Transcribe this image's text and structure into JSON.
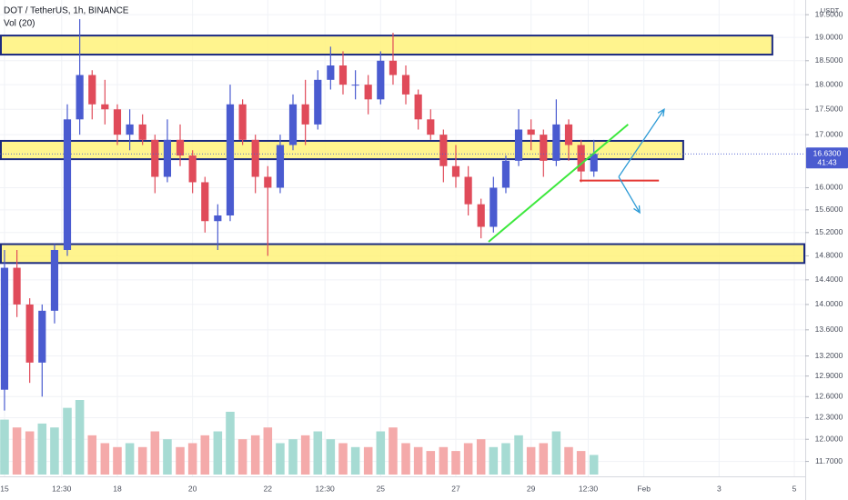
{
  "chart_data": {
    "type": "candlestick",
    "title": "DOT / TetherUS, 1h, BINANCE",
    "volume_label": "Vol (20)",
    "currency": "USDT",
    "log_scale": true,
    "grid": true,
    "up_color": "#4a5bd0",
    "down_color": "#e04b5a",
    "volume_up_color": "#a6dbd3",
    "volume_down_color": "#f4aaaa",
    "x": [
      15,
      15.33,
      15.67,
      16,
      16.33,
      16.67,
      17,
      17.33,
      17.67,
      18,
      18.33,
      18.67,
      19,
      19.33,
      19.67,
      20,
      20.33,
      20.67,
      21,
      21.33,
      21.67,
      22,
      22.33,
      22.67,
      23,
      23.33,
      23.67,
      24,
      24.33,
      24.67,
      25,
      25.33,
      25.67,
      26,
      26.33,
      26.67,
      27,
      27.33,
      27.67,
      28,
      28.33,
      28.67,
      29,
      29.33,
      29.67,
      30,
      30.33,
      30.67
    ],
    "open": [
      12.7,
      14.6,
      14.0,
      13.1,
      13.9,
      14.9,
      17.3,
      18.2,
      17.6,
      17.5,
      17.0,
      17.2,
      16.9,
      16.2,
      16.9,
      16.6,
      16.1,
      15.4,
      15.5,
      17.6,
      16.9,
      16.2,
      16.0,
      16.8,
      17.6,
      17.2,
      18.1,
      18.4,
      18.0,
      18.0,
      17.7,
      18.5,
      18.2,
      17.8,
      17.3,
      17.0,
      16.4,
      16.2,
      15.7,
      15.3,
      16.0,
      16.5,
      17.1,
      17.0,
      16.5,
      17.2,
      16.8,
      16.3
    ],
    "high": [
      14.9,
      14.9,
      14.1,
      14.0,
      15.0,
      17.6,
      19.4,
      18.3,
      18.1,
      17.6,
      17.5,
      17.4,
      17.0,
      17.3,
      17.2,
      16.7,
      16.2,
      15.7,
      18.0,
      17.7,
      17.0,
      16.4,
      17.0,
      17.8,
      18.1,
      18.3,
      18.8,
      18.7,
      18.3,
      18.2,
      18.7,
      19.1,
      18.4,
      17.9,
      17.5,
      17.1,
      16.8,
      16.4,
      15.8,
      16.2,
      16.6,
      17.5,
      17.3,
      17.1,
      17.7,
      17.3,
      16.9,
      16.9
    ],
    "low": [
      12.4,
      13.8,
      12.8,
      12.6,
      13.7,
      14.8,
      17.0,
      17.3,
      17.2,
      16.8,
      16.7,
      16.8,
      15.9,
      16.1,
      16.4,
      15.9,
      15.2,
      14.9,
      15.4,
      16.8,
      15.9,
      14.8,
      15.9,
      16.7,
      16.8,
      17.1,
      17.9,
      17.8,
      17.7,
      17.4,
      17.6,
      18.0,
      17.6,
      17.1,
      16.9,
      16.1,
      16.0,
      15.5,
      15.1,
      15.2,
      15.9,
      16.4,
      16.7,
      16.2,
      16.4,
      16.5,
      16.1,
      16.2
    ],
    "close": [
      14.6,
      14.0,
      13.1,
      13.9,
      14.9,
      17.3,
      18.2,
      17.6,
      17.5,
      17.0,
      17.2,
      16.9,
      16.2,
      16.9,
      16.6,
      16.1,
      15.4,
      15.5,
      17.6,
      16.9,
      16.2,
      16.0,
      16.8,
      17.6,
      17.2,
      18.1,
      18.4,
      18.0,
      18.0,
      17.7,
      18.5,
      18.2,
      17.8,
      17.3,
      17.0,
      16.4,
      16.2,
      15.7,
      15.3,
      16.0,
      16.5,
      17.1,
      17.0,
      16.5,
      17.2,
      16.8,
      16.3,
      16.63
    ],
    "volume": [
      70,
      60,
      55,
      65,
      60,
      85,
      95,
      50,
      40,
      35,
      40,
      35,
      55,
      45,
      35,
      40,
      50,
      55,
      80,
      45,
      50,
      60,
      40,
      45,
      50,
      55,
      45,
      40,
      35,
      35,
      55,
      60,
      40,
      35,
      30,
      35,
      30,
      40,
      45,
      35,
      40,
      50,
      35,
      40,
      55,
      35,
      30,
      25
    ],
    "xlim": [
      14.88,
      36.29
    ],
    "ylim": [
      11.55,
      19.83
    ],
    "xticks": [
      15,
      {
        "value": 16.52,
        "label": "12:30"
      },
      18,
      20,
      22,
      {
        "value": 23.52,
        "label": "12:30"
      },
      25,
      27,
      29,
      {
        "value": 30.52,
        "label": "12:30"
      },
      {
        "value": 32,
        "label": "Feb"
      },
      3,
      5
    ],
    "xtick_positions": [
      15,
      16.52,
      18,
      20,
      22,
      23.52,
      25,
      27,
      29,
      30.52,
      32,
      34,
      36
    ],
    "yticks": [
      {
        "value": 19.5,
        "label": "19.5000"
      },
      {
        "value": 19,
        "label": "19.0000"
      },
      {
        "value": 18.5,
        "label": "18.5000"
      },
      {
        "value": 18,
        "label": "18.0000"
      },
      {
        "value": 17.5,
        "label": "17.5000"
      },
      {
        "value": 17,
        "label": "17.0000"
      },
      {
        "value": 16,
        "label": "16.0000"
      },
      {
        "value": 15.6,
        "label": "15.6000"
      },
      {
        "value": 15.2,
        "label": "15.2000"
      },
      {
        "value": 14.8,
        "label": "14.8000"
      },
      {
        "value": 14.4,
        "label": "14.4000"
      },
      {
        "value": 14,
        "label": "14.0000"
      },
      {
        "value": 13.6,
        "label": "13.6000"
      },
      {
        "value": 13.2,
        "label": "13.2000"
      },
      {
        "value": 12.9,
        "label": "12.9000"
      },
      {
        "value": 12.6,
        "label": "12.6000"
      },
      {
        "value": 12.3,
        "label": "12.3000"
      },
      {
        "value": 12,
        "label": "12.0000"
      },
      {
        "value": 11.7,
        "label": "11.7000"
      }
    ],
    "last_price": {
      "value": 16.63,
      "label": "16.6300"
    },
    "countdown": "41:43",
    "zones": [
      {
        "top": 19.04,
        "bottom": 18.63,
        "x0": 14.88,
        "x1": 35.44
      },
      {
        "top": 16.88,
        "bottom": 16.53,
        "x0": 14.88,
        "x1": 33.07
      },
      {
        "top": 15.0,
        "bottom": 14.68,
        "x0": 14.88,
        "x1": 36.29
      }
    ],
    "zone_fill": "#fff27a",
    "zone_stroke": "#1b2a80",
    "trend_line": {
      "x": [
        27.87,
        31.58
      ],
      "y": [
        15.04,
        17.2
      ],
      "color": "#3de83d"
    },
    "support_line": {
      "x": [
        30.29,
        32.4
      ],
      "y": [
        16.13,
        16.13
      ],
      "color": "#e53935"
    },
    "arrows": [
      {
        "x": [
          31.33,
          32.54
        ],
        "y": [
          16.2,
          17.5
        ]
      },
      {
        "x": [
          31.33,
          31.89
        ],
        "y": [
          16.2,
          15.55
        ]
      }
    ],
    "arrow_color": "#2e9bd6"
  }
}
